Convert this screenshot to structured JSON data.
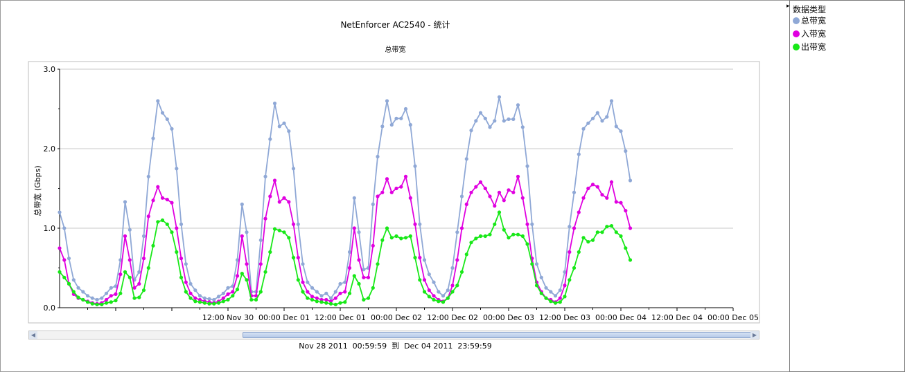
{
  "chart_data": {
    "type": "line",
    "title": "NetEnforcer AC2540 - 统计",
    "subtitle": "总带宽",
    "ylabel": "总带宽 (Gbps)",
    "xlabel": "",
    "ylim": [
      0,
      3.0
    ],
    "xlim": [
      "2011-11-29 00:00",
      "2011-12-05 00:00"
    ],
    "y_ticks": [
      "0.0",
      "1.0",
      "2.0",
      "3.0"
    ],
    "x_tick_labels": [
      "12:00 Nov 30",
      "00:00 Dec 01",
      "12:00 Dec 01",
      "00:00 Dec 02",
      "12:00 Dec 02",
      "00:00 Dec 03",
      "12:00 Dec 03",
      "00:00 Dec 04",
      "12:00 Dec 04",
      "00:00 Dec 05"
    ],
    "sample_interval_hours": 1,
    "first_sample": "2011-11-29 00:00",
    "grid": true,
    "legend_position": "right",
    "series": [
      {
        "name": "总带宽",
        "color": "#8fa8d6",
        "values": [
          1.2,
          1.0,
          0.62,
          0.35,
          0.25,
          0.2,
          0.15,
          0.12,
          0.1,
          0.12,
          0.18,
          0.25,
          0.27,
          0.6,
          1.33,
          0.98,
          0.35,
          0.45,
          0.9,
          1.65,
          2.13,
          2.6,
          2.45,
          2.37,
          2.25,
          1.75,
          1.05,
          0.55,
          0.3,
          0.22,
          0.15,
          0.12,
          0.11,
          0.1,
          0.14,
          0.18,
          0.25,
          0.27,
          0.6,
          1.3,
          0.95,
          0.2,
          0.2,
          0.85,
          1.65,
          2.12,
          2.57,
          2.28,
          2.32,
          2.22,
          1.75,
          1.05,
          0.55,
          0.32,
          0.25,
          0.2,
          0.15,
          0.18,
          0.12,
          0.2,
          0.3,
          0.32,
          0.7,
          1.38,
          0.95,
          0.48,
          0.5,
          1.3,
          1.9,
          2.28,
          2.6,
          2.3,
          2.38,
          2.38,
          2.5,
          2.3,
          1.78,
          1.05,
          0.6,
          0.42,
          0.32,
          0.2,
          0.15,
          0.22,
          0.5,
          0.95,
          1.4,
          1.87,
          2.23,
          2.35,
          2.45,
          2.38,
          2.27,
          2.35,
          2.65,
          2.35,
          2.37,
          2.37,
          2.55,
          2.27,
          1.78,
          1.05,
          0.55,
          0.38,
          0.25,
          0.2,
          0.15,
          0.22,
          0.45,
          1.02,
          1.45,
          1.93,
          2.25,
          2.32,
          2.38,
          2.45,
          2.35,
          2.4,
          2.6,
          2.28,
          2.22,
          1.97,
          1.6
        ]
      },
      {
        "name": "入带宽",
        "color": "#e000e0",
        "values": [
          0.75,
          0.6,
          0.3,
          0.17,
          0.12,
          0.1,
          0.08,
          0.06,
          0.05,
          0.06,
          0.1,
          0.15,
          0.17,
          0.42,
          0.9,
          0.6,
          0.25,
          0.3,
          0.62,
          1.15,
          1.35,
          1.52,
          1.38,
          1.36,
          1.32,
          1.0,
          0.62,
          0.32,
          0.18,
          0.12,
          0.1,
          0.08,
          0.07,
          0.06,
          0.08,
          0.12,
          0.17,
          0.2,
          0.4,
          0.9,
          0.55,
          0.15,
          0.15,
          0.55,
          1.12,
          1.4,
          1.6,
          1.33,
          1.38,
          1.33,
          1.05,
          0.63,
          0.32,
          0.2,
          0.14,
          0.12,
          0.1,
          0.1,
          0.08,
          0.12,
          0.18,
          0.2,
          0.5,
          1.0,
          0.6,
          0.38,
          0.38,
          0.78,
          1.4,
          1.45,
          1.62,
          1.45,
          1.5,
          1.52,
          1.65,
          1.38,
          1.05,
          0.63,
          0.35,
          0.22,
          0.15,
          0.1,
          0.08,
          0.12,
          0.28,
          0.6,
          1.0,
          1.3,
          1.45,
          1.52,
          1.58,
          1.5,
          1.4,
          1.28,
          1.45,
          1.35,
          1.48,
          1.45,
          1.65,
          1.38,
          1.05,
          0.62,
          0.32,
          0.2,
          0.12,
          0.1,
          0.07,
          0.12,
          0.28,
          0.7,
          1.0,
          1.2,
          1.38,
          1.5,
          1.55,
          1.52,
          1.42,
          1.38,
          1.58,
          1.33,
          1.32,
          1.22,
          1.0
        ]
      },
      {
        "name": "出带宽",
        "color": "#18e818",
        "values": [
          0.45,
          0.38,
          0.3,
          0.2,
          0.13,
          0.1,
          0.07,
          0.05,
          0.04,
          0.04,
          0.06,
          0.07,
          0.09,
          0.18,
          0.45,
          0.38,
          0.12,
          0.13,
          0.22,
          0.5,
          0.78,
          1.08,
          1.1,
          1.05,
          0.95,
          0.7,
          0.38,
          0.2,
          0.12,
          0.08,
          0.07,
          0.06,
          0.05,
          0.05,
          0.06,
          0.08,
          0.1,
          0.15,
          0.23,
          0.43,
          0.35,
          0.1,
          0.1,
          0.2,
          0.45,
          0.7,
          0.99,
          0.97,
          0.95,
          0.88,
          0.63,
          0.35,
          0.2,
          0.12,
          0.1,
          0.08,
          0.07,
          0.06,
          0.05,
          0.04,
          0.06,
          0.07,
          0.18,
          0.4,
          0.3,
          0.1,
          0.12,
          0.25,
          0.55,
          0.85,
          1.0,
          0.88,
          0.9,
          0.87,
          0.88,
          0.9,
          0.63,
          0.35,
          0.2,
          0.14,
          0.1,
          0.08,
          0.07,
          0.12,
          0.2,
          0.28,
          0.45,
          0.67,
          0.82,
          0.87,
          0.9,
          0.9,
          0.92,
          1.05,
          1.2,
          0.98,
          0.88,
          0.92,
          0.92,
          0.9,
          0.8,
          0.55,
          0.28,
          0.18,
          0.12,
          0.08,
          0.06,
          0.07,
          0.14,
          0.35,
          0.5,
          0.7,
          0.88,
          0.83,
          0.85,
          0.95,
          0.95,
          1.02,
          1.03,
          0.95,
          0.9,
          0.75,
          0.6
        ]
      }
    ]
  },
  "scrollbar": {
    "left_arrow": "◀",
    "right_arrow": "▶"
  },
  "range_text": "Nov 28 2011  00:59:59  到  Dec 04 2011  23:59:59",
  "legend": {
    "title": "数据类型",
    "caret": "▸",
    "items": [
      {
        "label": "总带宽",
        "color": "#8fa8d6"
      },
      {
        "label": "入带宽",
        "color": "#e000e0"
      },
      {
        "label": "出带宽",
        "color": "#18e818"
      }
    ]
  }
}
